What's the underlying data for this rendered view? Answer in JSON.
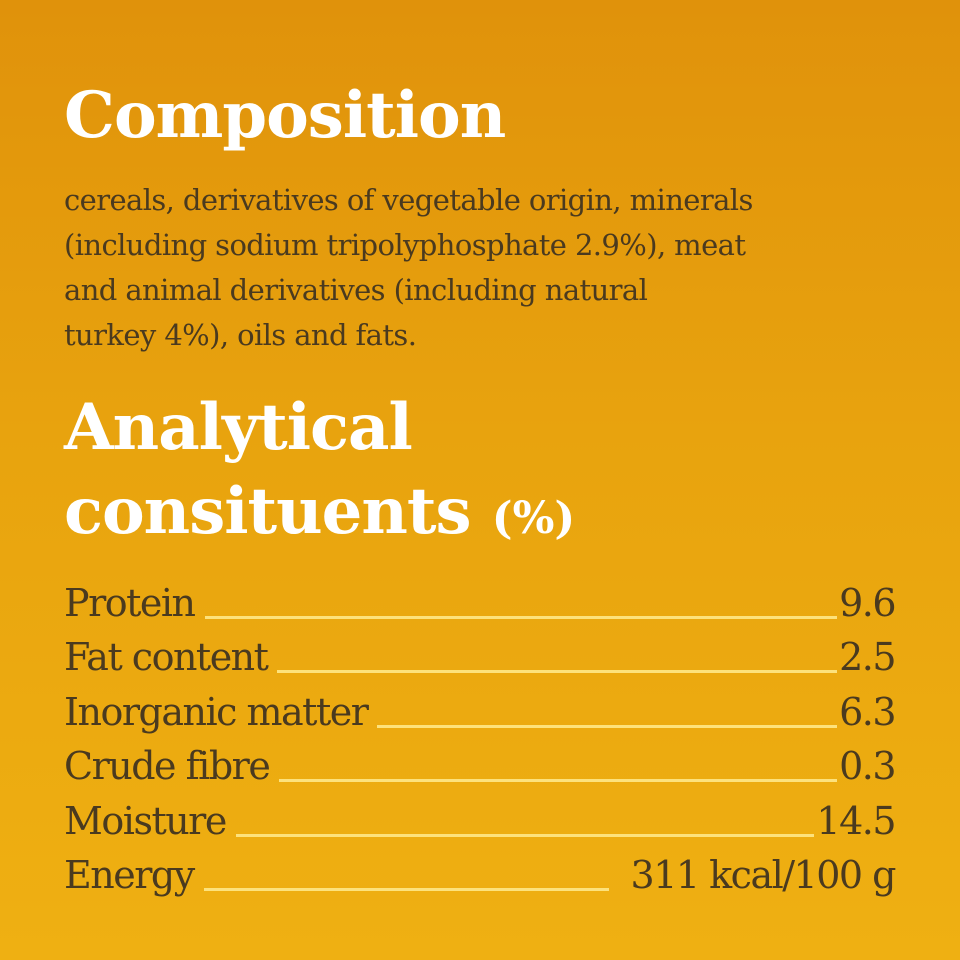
{
  "composition": {
    "heading": "Composition",
    "text_lines": [
      "cereals, derivatives of vegetable origin, minerals",
      "(including sodium tripolyphosphate 2.9%), meat",
      "and animal derivatives (including natural",
      "turkey 4%), oils and fats."
    ]
  },
  "analytical": {
    "heading_line1": "Analytical",
    "heading_line2": "consituents",
    "unit": "(%)",
    "rows": [
      {
        "label": "Protein",
        "value": "9.6"
      },
      {
        "label": "Fat content",
        "value": "2.5"
      },
      {
        "label": "Inorganic matter",
        "value": "6.3"
      },
      {
        "label": "Crude fibre",
        "value": "0.3"
      },
      {
        "label": "Moisture",
        "value": "14.5"
      },
      {
        "label": "Energy",
        "value": "311 kcal/100 g"
      }
    ]
  },
  "colors": {
    "background_top": "#e0920b",
    "background_bottom": "#efb012",
    "text": "#4a3a1f",
    "heading": "#ffffff",
    "leader_line": "#fde27c"
  }
}
